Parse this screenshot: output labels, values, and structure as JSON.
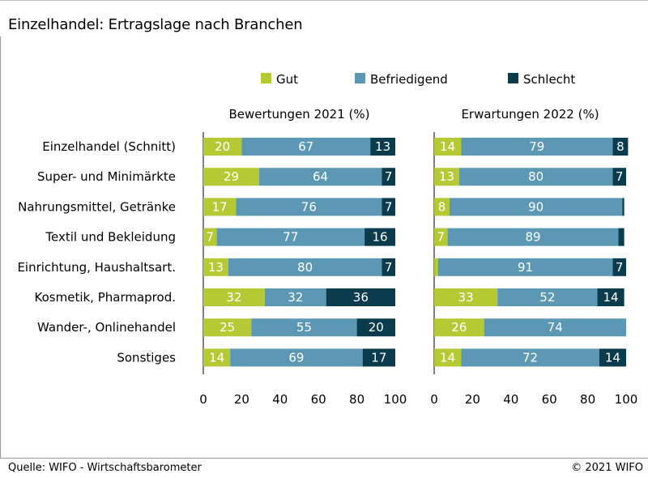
{
  "title": "Einzelhandel: Ertragslage nach Branchen",
  "source": "Quelle: WIFO - Wirtschaftsbarometer",
  "copyright": "© 2021 WIFO",
  "colors": {
    "gut": "#b5c935",
    "befriedigend": "#5c98b3",
    "schlecht": "#0b3c4e"
  },
  "chart_data": {
    "type": "bar",
    "orientation": "horizontal",
    "stacked": true,
    "legend": [
      "Gut",
      "Befriedigend",
      "Schlecht"
    ],
    "legend_placement": "top",
    "categories": [
      "Einzelhandel (Schnitt)",
      "Super- und Minimärkte",
      "Nahrungsmittel, Getränke",
      "Textil und Bekleidung",
      "Einrichtung, Haushaltsart.",
      "Kosmetik, Pharmaprod.",
      "Wander-, Onlinehandel",
      "Sonstiges"
    ],
    "panels": [
      {
        "title": "Bewertungen 2021 (%)",
        "xlim": [
          0,
          100
        ],
        "xticks": [
          0,
          20,
          40,
          60,
          80,
          100
        ],
        "series": [
          {
            "name": "Gut",
            "values": [
              20,
              29,
              17,
              7,
              13,
              32,
              25,
              14
            ]
          },
          {
            "name": "Befriedigend",
            "values": [
              67,
              64,
              76,
              77,
              80,
              32,
              55,
              69
            ]
          },
          {
            "name": "Schlecht",
            "values": [
              13,
              7,
              7,
              16,
              7,
              36,
              20,
              17
            ]
          }
        ]
      },
      {
        "title": "Erwartungen 2022 (%)",
        "xlim": [
          0,
          100
        ],
        "xticks": [
          0,
          20,
          40,
          60,
          80,
          100
        ],
        "series": [
          {
            "name": "Gut",
            "values": [
              14,
              13,
              8,
              7,
              2,
              33,
              26,
              14
            ]
          },
          {
            "name": "Befriedigend",
            "values": [
              79,
              80,
              90,
              89,
              91,
              52,
              74,
              72
            ]
          },
          {
            "name": "Schlecht",
            "values": [
              8,
              7,
              1,
              3,
              7,
              14,
              0,
              14
            ]
          }
        ],
        "labels": [
          [
            "14",
            "79",
            "8"
          ],
          [
            "13",
            "80",
            "7"
          ],
          [
            "8",
            "90",
            ""
          ],
          [
            "7",
            "89",
            ""
          ],
          [
            "",
            "91",
            "7"
          ],
          [
            "33",
            "52",
            "14"
          ],
          [
            "26",
            "74",
            ""
          ],
          [
            "14",
            "72",
            "14"
          ]
        ]
      }
    ]
  }
}
